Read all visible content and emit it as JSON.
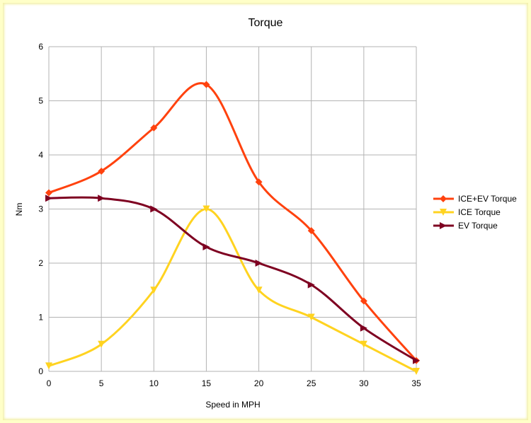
{
  "chart_data": {
    "type": "line",
    "title": "Torque",
    "xlabel": "Speed in MPH",
    "ylabel": "Nm",
    "x": [
      0,
      5,
      10,
      15,
      20,
      25,
      30,
      35
    ],
    "xlim": [
      0,
      35
    ],
    "ylim": [
      0,
      6
    ],
    "xticks": [
      "0",
      "5",
      "10",
      "15",
      "20",
      "25",
      "30",
      "35"
    ],
    "yticks": [
      "0",
      "1",
      "2",
      "3",
      "4",
      "5",
      "6"
    ],
    "grid": true,
    "smooth": true,
    "legend_position": "right",
    "series": [
      {
        "name": "ICE+EV Torque",
        "color": "#ff420e",
        "marker": "diamond",
        "values": [
          3.3,
          3.7,
          4.5,
          5.3,
          3.5,
          2.6,
          1.3,
          0.2
        ]
      },
      {
        "name": "ICE Torque",
        "color": "#ffd320",
        "marker": "triangle-down",
        "values": [
          0.1,
          0.5,
          1.5,
          3.0,
          1.5,
          1.0,
          0.5,
          0.0
        ]
      },
      {
        "name": "EV Torque",
        "color": "#7e0021",
        "marker": "triangle-right",
        "values": [
          3.2,
          3.2,
          3.0,
          2.3,
          2.0,
          1.6,
          0.8,
          0.2
        ]
      }
    ]
  }
}
